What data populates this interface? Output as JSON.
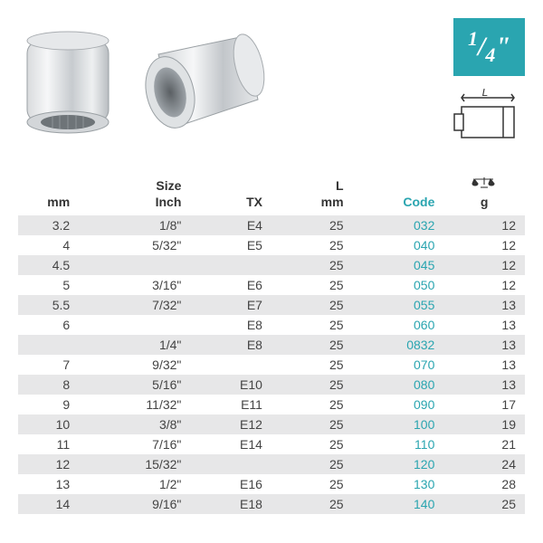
{
  "badge": {
    "numerator": "1",
    "denominator": "4",
    "quote": "\"",
    "background": "#2aa5b0",
    "textcolor": "#ffffff"
  },
  "diagram": {
    "label_L": "L"
  },
  "headers": {
    "mm": "mm",
    "size1": "Size",
    "size2": "Inch",
    "tx": "TX",
    "lmm1": "L",
    "lmm2": "mm",
    "code": "Code",
    "g": "g"
  },
  "colors": {
    "accent": "#2aa5b0",
    "alt_row": "#e7e7e8",
    "text": "#333333"
  },
  "rows": [
    {
      "mm": "3.2",
      "size": "1/8\"",
      "tx": "E4",
      "lmm": "25",
      "code": "032",
      "g": "12"
    },
    {
      "mm": "4",
      "size": "5/32\"",
      "tx": "E5",
      "lmm": "25",
      "code": "040",
      "g": "12"
    },
    {
      "mm": "4.5",
      "size": "",
      "tx": "",
      "lmm": "25",
      "code": "045",
      "g": "12"
    },
    {
      "mm": "5",
      "size": "3/16\"",
      "tx": "E6",
      "lmm": "25",
      "code": "050",
      "g": "12"
    },
    {
      "mm": "5.5",
      "size": "7/32\"",
      "tx": "E7",
      "lmm": "25",
      "code": "055",
      "g": "13"
    },
    {
      "mm": "6",
      "size": "",
      "tx": "E8",
      "lmm": "25",
      "code": "060",
      "g": "13"
    },
    {
      "mm": "",
      "size": "1/4\"",
      "tx": "E8",
      "lmm": "25",
      "code": "0832",
      "g": "13"
    },
    {
      "mm": "7",
      "size": "9/32\"",
      "tx": "",
      "lmm": "25",
      "code": "070",
      "g": "13"
    },
    {
      "mm": "8",
      "size": "5/16\"",
      "tx": "E10",
      "lmm": "25",
      "code": "080",
      "g": "13"
    },
    {
      "mm": "9",
      "size": "11/32\"",
      "tx": "E11",
      "lmm": "25",
      "code": "090",
      "g": "17"
    },
    {
      "mm": "10",
      "size": "3/8\"",
      "tx": "E12",
      "lmm": "25",
      "code": "100",
      "g": "19"
    },
    {
      "mm": "11",
      "size": "7/16\"",
      "tx": "E14",
      "lmm": "25",
      "code": "110",
      "g": "21"
    },
    {
      "mm": "12",
      "size": "15/32\"",
      "tx": "",
      "lmm": "25",
      "code": "120",
      "g": "24"
    },
    {
      "mm": "13",
      "size": "1/2\"",
      "tx": "E16",
      "lmm": "25",
      "code": "130",
      "g": "28"
    },
    {
      "mm": "14",
      "size": "9/16\"",
      "tx": "E18",
      "lmm": "25",
      "code": "140",
      "g": "25"
    }
  ]
}
